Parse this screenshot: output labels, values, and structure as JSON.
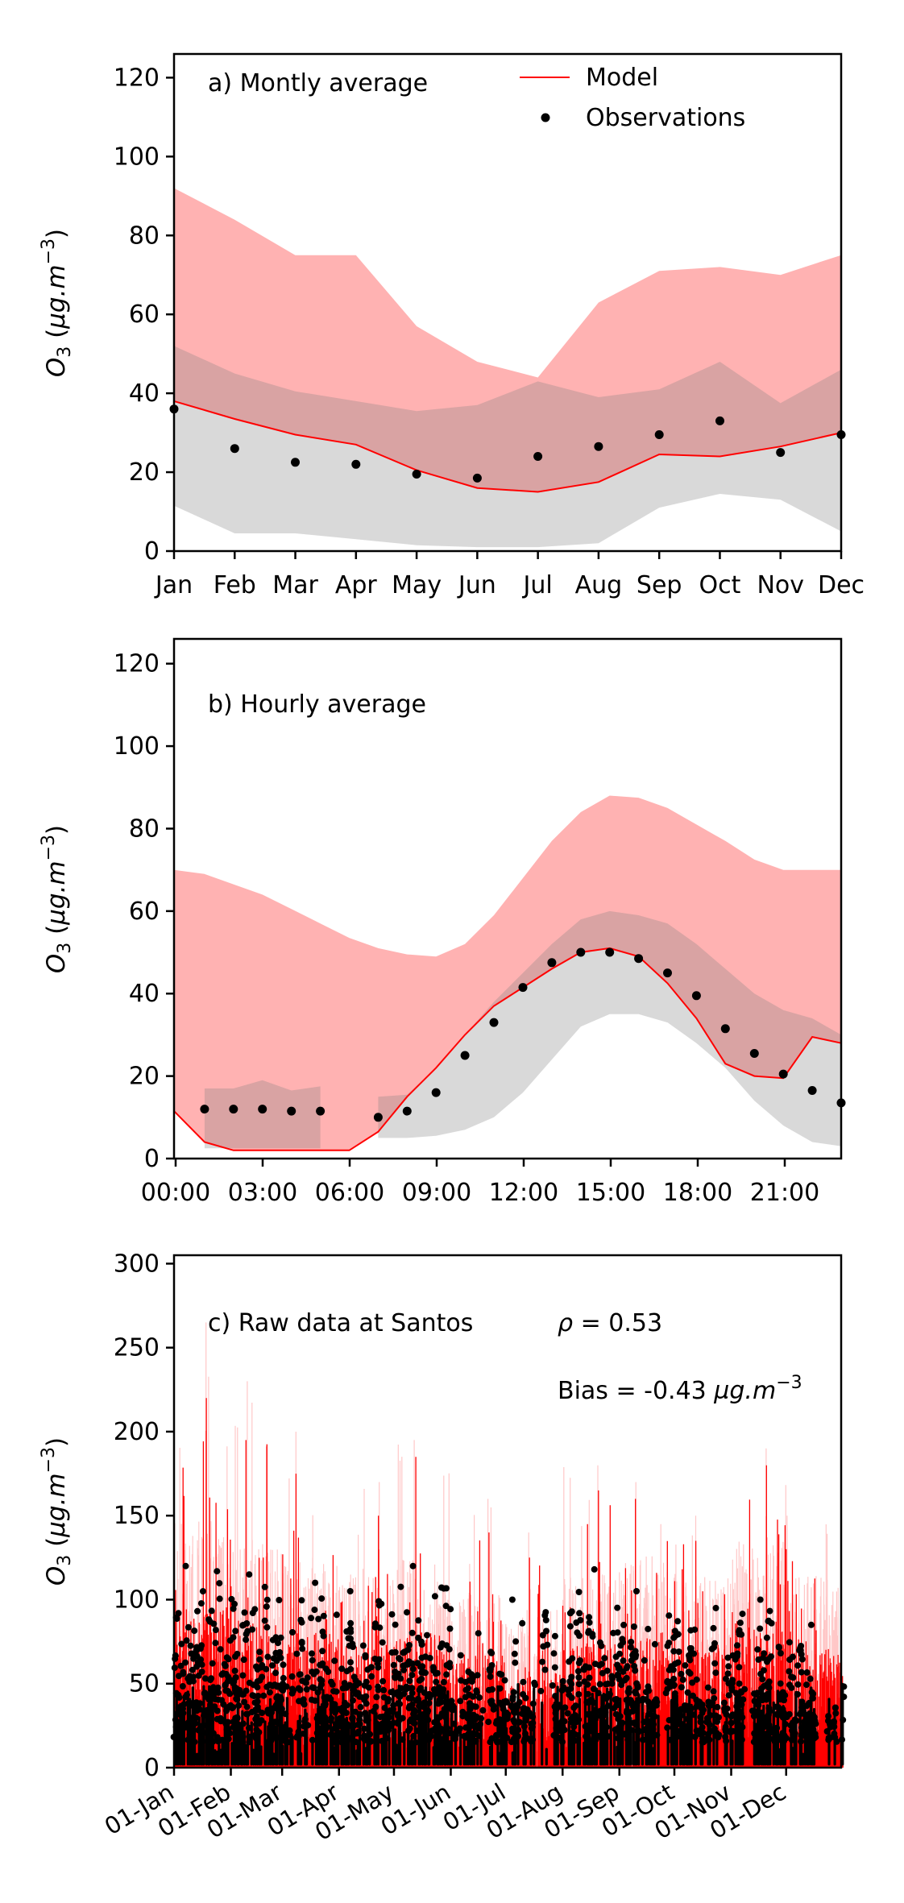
{
  "figure": {
    "background": "#ffffff"
  },
  "colors": {
    "model_line": "#ff0000",
    "model_band": "rgba(255,0,0,0.30)",
    "obs_band": "rgba(128,128,128,0.30)",
    "obs_marker": "#000000",
    "axis": "#000000"
  },
  "ylabel_parts": [
    {
      "text": "O",
      "style": "italic"
    },
    {
      "text": "3",
      "script": "sub"
    },
    {
      "text": " (",
      "style": "normal"
    },
    {
      "text": "µg.m",
      "style": "italic"
    },
    {
      "text": "−3",
      "script": "sup"
    },
    {
      "text": ")",
      "style": "normal"
    }
  ],
  "legend": {
    "model": "Model",
    "observations": "Observations"
  },
  "chart_data": [
    {
      "id": "a",
      "type": "band-line-scatter",
      "title": "a) Montly average",
      "x_categories": [
        "Jan",
        "Feb",
        "Mar",
        "Apr",
        "May",
        "Jun",
        "Jul",
        "Aug",
        "Sep",
        "Oct",
        "Nov",
        "Dec"
      ],
      "ylim": [
        0,
        126
      ],
      "yticks": [
        0,
        20,
        40,
        60,
        80,
        100,
        120
      ],
      "model_mean": [
        38,
        33.5,
        29.5,
        27,
        20.5,
        16,
        15,
        17.5,
        24.5,
        24,
        26.5,
        30
      ],
      "model_band_top": [
        92,
        84,
        75,
        75,
        57,
        48,
        44,
        63,
        71,
        72,
        70,
        75
      ],
      "obs_mean": [
        36,
        26,
        22.5,
        22,
        19.5,
        18.5,
        24,
        26.5,
        29.5,
        33,
        25,
        29.5
      ],
      "obs_band_top": [
        52,
        45,
        40.5,
        38,
        35.5,
        37,
        43,
        39,
        41,
        48,
        37.5,
        46
      ],
      "obs_band_bottom": [
        11.5,
        4.5,
        4.5,
        3,
        1.5,
        1,
        1,
        2,
        11,
        14.5,
        13,
        5
      ]
    },
    {
      "id": "b",
      "type": "band-line-scatter",
      "title": "b) Hourly average",
      "hours": [
        0,
        1,
        2,
        3,
        4,
        5,
        6,
        7,
        8,
        9,
        10,
        11,
        12,
        13,
        14,
        15,
        16,
        17,
        18,
        19,
        20,
        21,
        22,
        23
      ],
      "x_ticks_hours": [
        0,
        3,
        6,
        9,
        12,
        15,
        18,
        21
      ],
      "x_tick_labels": [
        "00:00",
        "03:00",
        "06:00",
        "09:00",
        "12:00",
        "15:00",
        "18:00",
        "21:00"
      ],
      "ylim": [
        0,
        126
      ],
      "yticks": [
        0,
        20,
        40,
        60,
        80,
        100,
        120
      ],
      "model_mean": [
        11.5,
        4,
        2,
        2,
        2,
        2,
        2,
        6.5,
        15,
        22,
        30,
        37,
        41.5,
        46,
        50,
        51,
        49,
        42.5,
        34,
        23,
        20,
        19.5,
        29.5,
        28
      ],
      "model_band_top": [
        70,
        69,
        66.5,
        64,
        60.5,
        57,
        53.5,
        51,
        49.5,
        49,
        52,
        59,
        68,
        77,
        84,
        88,
        87.5,
        85,
        81,
        77,
        72.5,
        70,
        70,
        70
      ],
      "obs_mean": [
        null,
        12,
        12,
        12,
        11.5,
        11.5,
        null,
        10,
        11.5,
        16,
        25,
        33,
        41.5,
        47.5,
        50,
        50,
        48.5,
        45,
        39.5,
        31.5,
        25.5,
        20.5,
        16.5,
        13.5
      ],
      "obs_band_segments": [
        {
          "hours": [
            1,
            2,
            3,
            4,
            5
          ],
          "bottom": [
            2.5,
            2.5,
            2.5,
            2.5,
            2.5
          ],
          "top": [
            17,
            17,
            19,
            16.5,
            17.5
          ]
        },
        {
          "hours": [
            7,
            8,
            9,
            10,
            11,
            12,
            13,
            14,
            15,
            16,
            17,
            18,
            19,
            20,
            21,
            22,
            23
          ],
          "bottom": [
            5,
            5,
            5.5,
            7,
            10,
            16,
            24,
            32,
            35,
            35,
            33,
            28,
            22,
            14,
            8,
            4,
            3
          ],
          "top": [
            15,
            15.5,
            22,
            30,
            38,
            45,
            52,
            58,
            60,
            59,
            57,
            52,
            46,
            40,
            36,
            34,
            30
          ]
        }
      ]
    },
    {
      "id": "c",
      "type": "raw-series",
      "title": "c) Raw data at Santos",
      "stats": {
        "rho_parts": [
          {
            "text": "ρ",
            "style": "italic"
          },
          {
            "text": " = 0.53",
            "style": "normal"
          }
        ],
        "bias_parts": [
          {
            "text": "Bias = -0.43 ",
            "style": "normal"
          },
          {
            "text": "µg.m",
            "style": "italic"
          },
          {
            "text": "−3",
            "script": "sup"
          }
        ]
      },
      "ylim": [
        0,
        305
      ],
      "yticks": [
        0,
        50,
        100,
        150,
        200,
        250,
        300
      ],
      "n_days": 365,
      "month_start_days": [
        0,
        31,
        59,
        90,
        120,
        151,
        181,
        212,
        243,
        273,
        304,
        334
      ],
      "x_tick_labels": [
        "01-Jan",
        "01-Feb",
        "01-Mar",
        "01-Apr",
        "01-May",
        "01-Jun",
        "01-Jul",
        "01-Aug",
        "01-Sep",
        "01-Oct",
        "01-Nov",
        "01-Dec"
      ],
      "model_monthly_typical": [
        70,
        65,
        60,
        55,
        60,
        50,
        45,
        55,
        60,
        55,
        65,
        55
      ],
      "model_monthly_peak": [
        220,
        195,
        175,
        150,
        185,
        140,
        125,
        165,
        160,
        135,
        180,
        130
      ],
      "pink_monthly_peak": [
        265,
        230,
        200,
        170,
        195,
        160,
        140,
        180,
        170,
        150,
        190,
        150
      ],
      "obs_monthly_max": [
        120,
        115,
        110,
        105,
        120,
        80,
        100,
        118,
        105,
        95,
        100,
        85
      ],
      "obs_monthly_density": [
        0.85,
        0.8,
        0.75,
        0.7,
        0.75,
        0.45,
        0.5,
        0.8,
        0.7,
        0.6,
        0.7,
        0.6
      ]
    }
  ]
}
